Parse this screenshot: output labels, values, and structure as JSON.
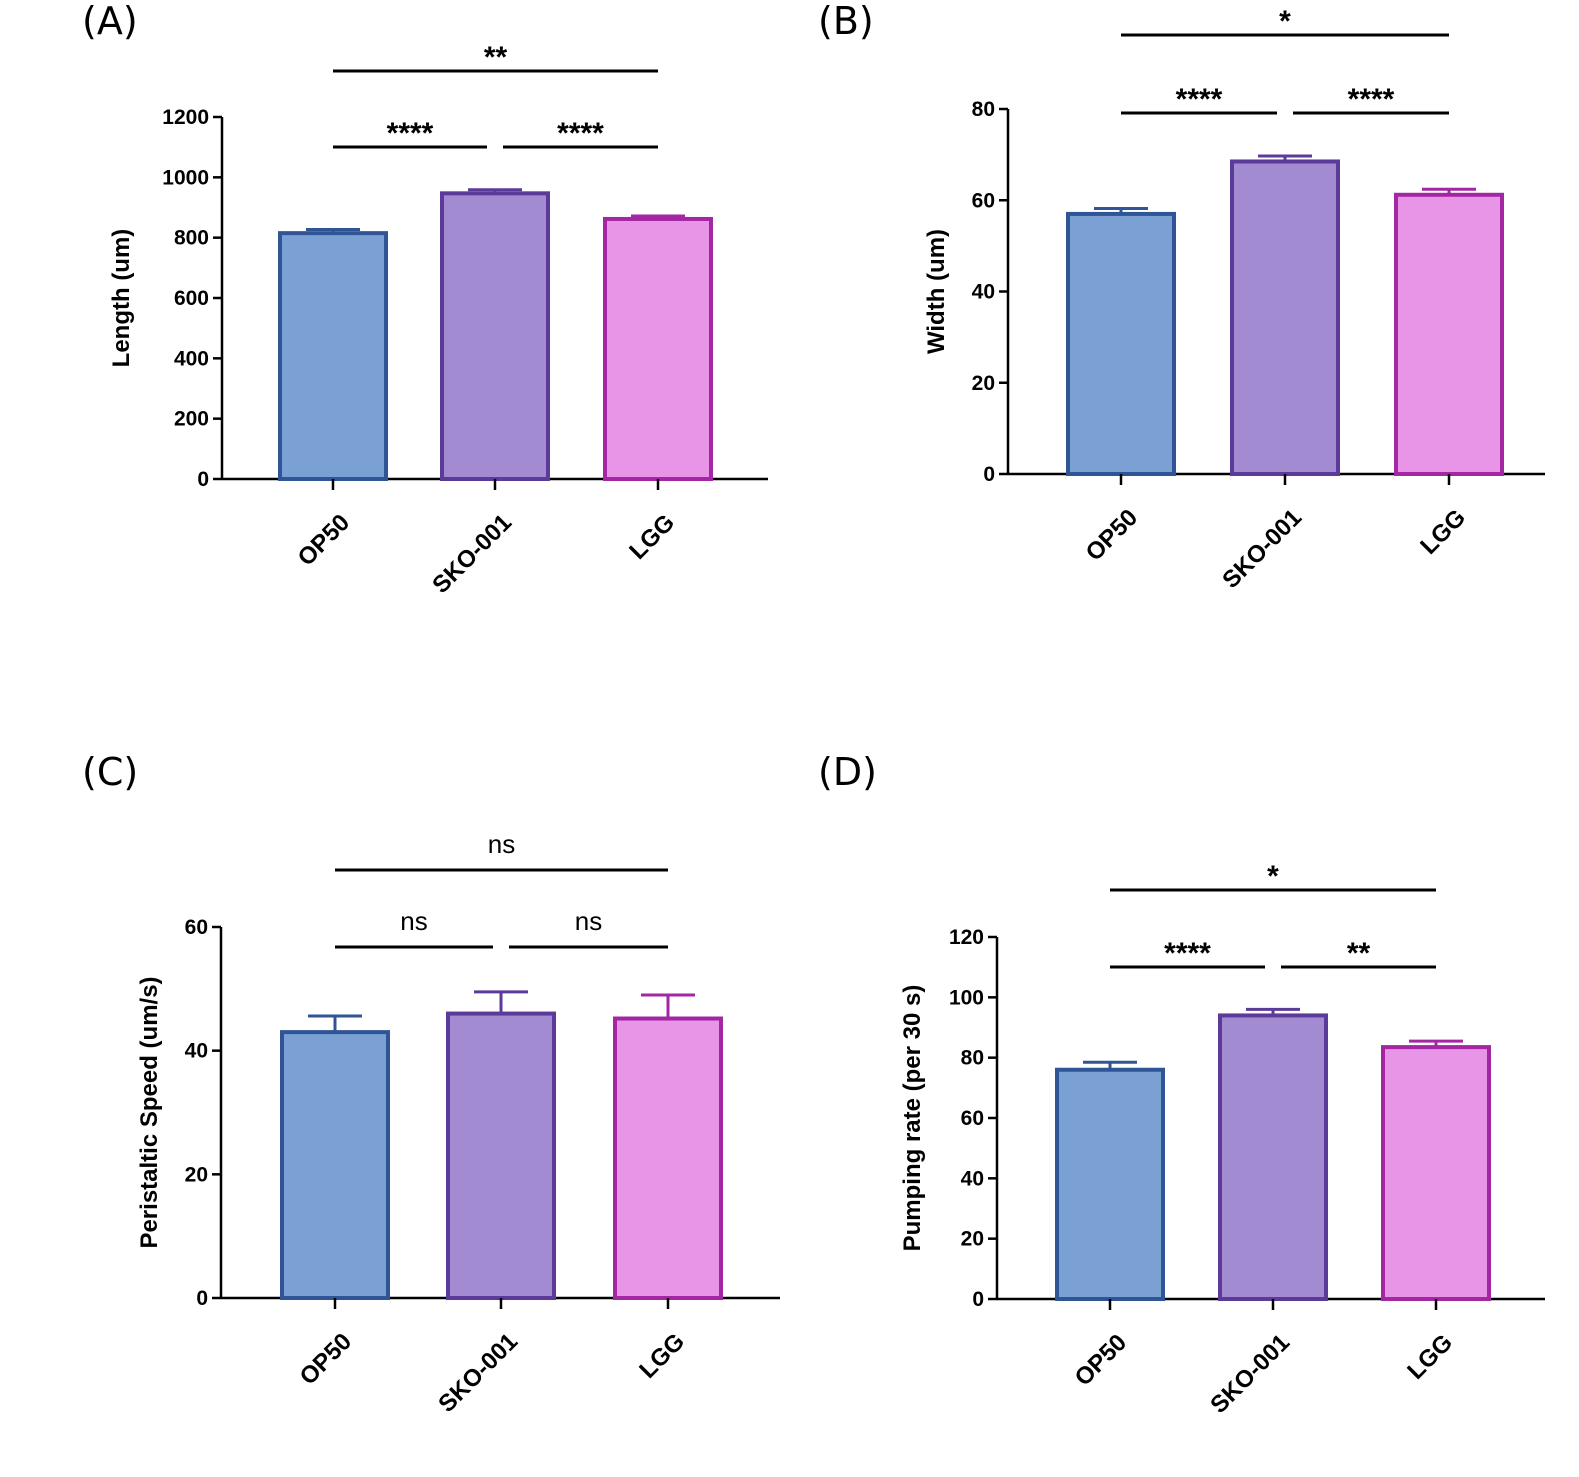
{
  "chart_data": [
    {
      "panel": "(A)",
      "type": "bar",
      "categories": [
        "OP50",
        "SKO-001",
        "LGG"
      ],
      "values": [
        815,
        947,
        862
      ],
      "errors": [
        12,
        12,
        10
      ],
      "ylabel": "Length (um)",
      "ylim": [
        0,
        1200
      ],
      "yticks": [
        0,
        200,
        400,
        600,
        800,
        1000,
        1200
      ],
      "colors": [
        {
          "fill": "#7ba0d4",
          "stroke": "#2f5597"
        },
        {
          "fill": "#a38bd2",
          "stroke": "#5b3a99"
        },
        {
          "fill": "#e895e8",
          "stroke": "#a326a3"
        }
      ],
      "comparisons": [
        {
          "from": 0,
          "to": 1,
          "label": "****"
        },
        {
          "from": 1,
          "to": 2,
          "label": "****"
        },
        {
          "from": 0,
          "to": 2,
          "label": "**"
        }
      ]
    },
    {
      "panel": "(B)",
      "type": "bar",
      "categories": [
        "OP50",
        "SKO-001",
        "LGG"
      ],
      "values": [
        57,
        68.5,
        61.2
      ],
      "errors": [
        1.2,
        1.2,
        1.2
      ],
      "ylabel": "Width (um)",
      "ylim": [
        0,
        80
      ],
      "yticks": [
        0,
        20,
        40,
        60,
        80
      ],
      "colors": [
        {
          "fill": "#7ba0d4",
          "stroke": "#2f5597"
        },
        {
          "fill": "#a38bd2",
          "stroke": "#5b3a99"
        },
        {
          "fill": "#e895e8",
          "stroke": "#a326a3"
        }
      ],
      "comparisons": [
        {
          "from": 0,
          "to": 1,
          "label": "****"
        },
        {
          "from": 1,
          "to": 2,
          "label": "****"
        },
        {
          "from": 0,
          "to": 2,
          "label": "*"
        }
      ]
    },
    {
      "panel": "(C)",
      "type": "bar",
      "categories": [
        "OP50",
        "SKO-001",
        "LGG"
      ],
      "values": [
        43,
        46,
        45.2
      ],
      "errors": [
        2.6,
        3.5,
        3.8
      ],
      "ylabel": "Peristaltic Speed (um/s)",
      "ylim": [
        0,
        60
      ],
      "yticks": [
        0,
        20,
        40,
        60
      ],
      "colors": [
        {
          "fill": "#7ba0d4",
          "stroke": "#2f5597"
        },
        {
          "fill": "#a38bd2",
          "stroke": "#5b3a99"
        },
        {
          "fill": "#e895e8",
          "stroke": "#a326a3"
        }
      ],
      "comparisons": [
        {
          "from": 0,
          "to": 1,
          "label": "ns"
        },
        {
          "from": 1,
          "to": 2,
          "label": "ns"
        },
        {
          "from": 0,
          "to": 2,
          "label": "ns"
        }
      ]
    },
    {
      "panel": "(D)",
      "type": "bar",
      "categories": [
        "OP50",
        "SKO-001",
        "LGG"
      ],
      "values": [
        76,
        94,
        83.5
      ],
      "errors": [
        2.5,
        2,
        2
      ],
      "ylabel": "Pumping rate (per 30 s)",
      "ylim": [
        0,
        120
      ],
      "yticks": [
        0,
        20,
        40,
        60,
        80,
        100,
        120
      ],
      "colors": [
        {
          "fill": "#7ba0d4",
          "stroke": "#2f5597"
        },
        {
          "fill": "#a38bd2",
          "stroke": "#5b3a99"
        },
        {
          "fill": "#e895e8",
          "stroke": "#a326a3"
        }
      ],
      "comparisons": [
        {
          "from": 0,
          "to": 1,
          "label": "****"
        },
        {
          "from": 1,
          "to": 2,
          "label": "**"
        },
        {
          "from": 0,
          "to": 2,
          "label": "*"
        }
      ]
    }
  ]
}
